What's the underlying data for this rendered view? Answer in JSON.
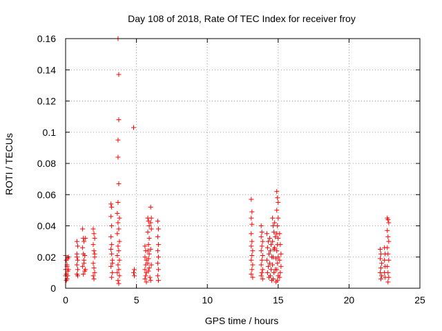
{
  "chart_data": {
    "type": "scatter",
    "title": "Day 108 of 2018, Rate Of TEC Index for receiver froy",
    "xlabel": "GPS time / hours",
    "ylabel": "ROTI / TECUs",
    "xlim": [
      0,
      25
    ],
    "ylim": [
      0,
      0.16
    ],
    "xticks": [
      0,
      5,
      10,
      15,
      20,
      25
    ],
    "xtick_labels": [
      "0",
      "5",
      "10",
      "15",
      "20",
      "25"
    ],
    "yticks": [
      0,
      0.02,
      0.04,
      0.06,
      0.08,
      0.1,
      0.12,
      0.14,
      0.16
    ],
    "ytick_labels": [
      "0",
      "0.02",
      "0.04",
      "0.06",
      "0.08",
      "0.1",
      "0.12",
      "0.14",
      "0.16"
    ],
    "grid": true,
    "marker": "+",
    "color": "#ff0000",
    "series": [
      {
        "name": "ROTI",
        "points": [
          [
            0.0,
            0.021
          ],
          [
            0.05,
            0.018
          ],
          [
            0.1,
            0.015
          ],
          [
            0.0,
            0.012
          ],
          [
            0.05,
            0.009
          ],
          [
            0.1,
            0.006
          ],
          [
            0.15,
            0.011
          ],
          [
            0.2,
            0.02
          ],
          [
            0.15,
            0.008
          ],
          [
            0.05,
            0.005
          ],
          [
            0.1,
            0.014
          ],
          [
            0.2,
            0.012
          ],
          [
            0.0,
            0.008
          ],
          [
            0.15,
            0.019
          ],
          [
            0.8,
            0.03
          ],
          [
            0.85,
            0.027
          ],
          [
            0.8,
            0.022
          ],
          [
            0.85,
            0.018
          ],
          [
            0.8,
            0.015
          ],
          [
            0.85,
            0.012
          ],
          [
            0.8,
            0.009
          ],
          [
            0.85,
            0.008
          ],
          [
            0.8,
            0.02
          ],
          [
            1.2,
            0.038
          ],
          [
            1.25,
            0.032
          ],
          [
            1.3,
            0.03
          ],
          [
            1.2,
            0.026
          ],
          [
            1.25,
            0.022
          ],
          [
            1.3,
            0.018
          ],
          [
            1.2,
            0.014
          ],
          [
            1.35,
            0.011
          ],
          [
            1.25,
            0.009
          ],
          [
            1.3,
            0.016
          ],
          [
            1.4,
            0.032
          ],
          [
            1.35,
            0.021
          ],
          [
            1.4,
            0.012
          ],
          [
            1.95,
            0.038
          ],
          [
            2.0,
            0.035
          ],
          [
            2.05,
            0.032
          ],
          [
            1.95,
            0.028
          ],
          [
            2.0,
            0.024
          ],
          [
            2.05,
            0.02
          ],
          [
            1.95,
            0.016
          ],
          [
            2.0,
            0.013
          ],
          [
            2.05,
            0.01
          ],
          [
            1.95,
            0.008
          ],
          [
            2.0,
            0.006
          ],
          [
            2.05,
            0.022
          ],
          [
            3.2,
            0.054
          ],
          [
            3.25,
            0.052
          ],
          [
            3.2,
            0.046
          ],
          [
            3.25,
            0.04
          ],
          [
            3.2,
            0.033
          ],
          [
            3.25,
            0.028
          ],
          [
            3.2,
            0.025
          ],
          [
            3.25,
            0.022
          ],
          [
            3.3,
            0.018
          ],
          [
            3.2,
            0.014
          ],
          [
            3.3,
            0.01
          ],
          [
            3.25,
            0.007
          ],
          [
            3.3,
            0.016
          ],
          [
            3.7,
            0.16
          ],
          [
            3.75,
            0.137
          ],
          [
            3.75,
            0.108
          ],
          [
            3.7,
            0.095
          ],
          [
            3.7,
            0.084
          ],
          [
            3.75,
            0.067
          ],
          [
            3.7,
            0.055
          ],
          [
            3.65,
            0.048
          ],
          [
            3.8,
            0.045
          ],
          [
            3.7,
            0.042
          ],
          [
            3.75,
            0.038
          ],
          [
            3.65,
            0.035
          ],
          [
            3.8,
            0.03
          ],
          [
            3.7,
            0.027
          ],
          [
            3.75,
            0.024
          ],
          [
            3.65,
            0.021
          ],
          [
            3.8,
            0.018
          ],
          [
            3.7,
            0.015
          ],
          [
            3.75,
            0.012
          ],
          [
            3.65,
            0.01
          ],
          [
            3.8,
            0.008
          ],
          [
            3.7,
            0.005
          ],
          [
            3.75,
            0.003
          ],
          [
            4.8,
            0.103
          ],
          [
            4.85,
            0.012
          ],
          [
            4.8,
            0.01
          ],
          [
            4.85,
            0.008
          ],
          [
            5.6,
            0.027
          ],
          [
            5.65,
            0.024
          ],
          [
            5.6,
            0.02
          ],
          [
            5.7,
            0.018
          ],
          [
            5.65,
            0.015
          ],
          [
            5.6,
            0.012
          ],
          [
            5.7,
            0.01
          ],
          [
            5.65,
            0.008
          ],
          [
            5.6,
            0.006
          ],
          [
            5.7,
            0.004
          ],
          [
            5.8,
            0.045
          ],
          [
            5.85,
            0.043
          ],
          [
            5.9,
            0.04
          ],
          [
            5.8,
            0.036
          ],
          [
            5.9,
            0.032
          ],
          [
            5.85,
            0.028
          ],
          [
            5.8,
            0.024
          ],
          [
            5.9,
            0.022
          ],
          [
            5.85,
            0.019
          ],
          [
            5.8,
            0.016
          ],
          [
            5.9,
            0.013
          ],
          [
            5.85,
            0.011
          ],
          [
            6.0,
            0.052
          ],
          [
            6.05,
            0.045
          ],
          [
            6.0,
            0.042
          ],
          [
            6.05,
            0.038
          ],
          [
            6.0,
            0.025
          ],
          [
            6.05,
            0.015
          ],
          [
            5.95,
            0.007
          ],
          [
            6.0,
            0.005
          ],
          [
            6.5,
            0.043
          ],
          [
            6.55,
            0.038
          ],
          [
            6.5,
            0.033
          ],
          [
            6.55,
            0.028
          ],
          [
            6.5,
            0.024
          ],
          [
            6.55,
            0.02
          ],
          [
            6.5,
            0.016
          ],
          [
            6.55,
            0.012
          ],
          [
            6.5,
            0.008
          ],
          [
            6.55,
            0.005
          ],
          [
            13.1,
            0.057
          ],
          [
            13.15,
            0.049
          ],
          [
            13.1,
            0.045
          ],
          [
            13.15,
            0.041
          ],
          [
            13.1,
            0.035
          ],
          [
            13.15,
            0.03
          ],
          [
            13.1,
            0.027
          ],
          [
            13.2,
            0.024
          ],
          [
            13.15,
            0.021
          ],
          [
            13.1,
            0.018
          ],
          [
            13.2,
            0.015
          ],
          [
            13.15,
            0.012
          ],
          [
            13.1,
            0.009
          ],
          [
            13.2,
            0.007
          ],
          [
            13.8,
            0.04
          ],
          [
            13.85,
            0.036
          ],
          [
            13.8,
            0.033
          ],
          [
            13.9,
            0.03
          ],
          [
            13.85,
            0.027
          ],
          [
            13.8,
            0.024
          ],
          [
            13.9,
            0.021
          ],
          [
            13.85,
            0.018
          ],
          [
            13.8,
            0.015
          ],
          [
            13.9,
            0.012
          ],
          [
            13.85,
            0.01
          ],
          [
            13.8,
            0.008
          ],
          [
            13.9,
            0.006
          ],
          [
            14.2,
            0.035
          ],
          [
            14.3,
            0.03
          ],
          [
            14.25,
            0.026
          ],
          [
            14.35,
            0.022
          ],
          [
            14.2,
            0.018
          ],
          [
            14.3,
            0.014
          ],
          [
            14.25,
            0.01
          ],
          [
            14.35,
            0.007
          ],
          [
            14.4,
            0.032
          ],
          [
            14.5,
            0.028
          ],
          [
            14.45,
            0.024
          ],
          [
            14.55,
            0.02
          ],
          [
            14.4,
            0.016
          ],
          [
            14.5,
            0.012
          ],
          [
            14.45,
            0.008
          ],
          [
            14.55,
            0.005
          ],
          [
            14.6,
            0.045
          ],
          [
            14.65,
            0.04
          ],
          [
            14.7,
            0.036
          ],
          [
            14.6,
            0.03
          ],
          [
            14.7,
            0.025
          ],
          [
            14.65,
            0.02
          ],
          [
            14.6,
            0.015
          ],
          [
            14.7,
            0.01
          ],
          [
            14.65,
            0.006
          ],
          [
            14.75,
            0.042
          ],
          [
            14.8,
            0.033
          ],
          [
            14.75,
            0.026
          ],
          [
            14.85,
            0.019
          ],
          [
            14.8,
            0.012
          ],
          [
            14.85,
            0.004
          ],
          [
            14.9,
            0.062
          ],
          [
            14.95,
            0.058
          ],
          [
            15.0,
            0.055
          ],
          [
            14.9,
            0.05
          ],
          [
            15.0,
            0.045
          ],
          [
            14.95,
            0.04
          ],
          [
            14.9,
            0.035
          ],
          [
            15.0,
            0.032
          ],
          [
            14.95,
            0.028
          ],
          [
            14.9,
            0.024
          ],
          [
            15.0,
            0.02
          ],
          [
            14.95,
            0.016
          ],
          [
            14.9,
            0.012
          ],
          [
            15.0,
            0.008
          ],
          [
            14.95,
            0.005
          ],
          [
            15.1,
            0.035
          ],
          [
            15.15,
            0.028
          ],
          [
            15.2,
            0.022
          ],
          [
            15.1,
            0.018
          ],
          [
            15.2,
            0.014
          ],
          [
            15.15,
            0.01
          ],
          [
            15.1,
            0.007
          ],
          [
            22.2,
            0.025
          ],
          [
            22.25,
            0.022
          ],
          [
            22.2,
            0.019
          ],
          [
            22.3,
            0.016
          ],
          [
            22.25,
            0.013
          ],
          [
            22.2,
            0.01
          ],
          [
            22.3,
            0.008
          ],
          [
            22.25,
            0.006
          ],
          [
            22.5,
            0.026
          ],
          [
            22.55,
            0.022
          ],
          [
            22.5,
            0.018
          ],
          [
            22.55,
            0.014
          ],
          [
            22.5,
            0.01
          ],
          [
            22.55,
            0.007
          ],
          [
            22.7,
            0.045
          ],
          [
            22.75,
            0.044
          ],
          [
            22.8,
            0.042
          ],
          [
            22.7,
            0.037
          ],
          [
            22.75,
            0.033
          ],
          [
            22.8,
            0.03
          ],
          [
            22.7,
            0.026
          ],
          [
            22.75,
            0.022
          ],
          [
            22.8,
            0.018
          ],
          [
            22.7,
            0.014
          ],
          [
            22.75,
            0.01
          ],
          [
            22.8,
            0.007
          ],
          [
            22.75,
            0.004
          ]
        ]
      }
    ]
  }
}
